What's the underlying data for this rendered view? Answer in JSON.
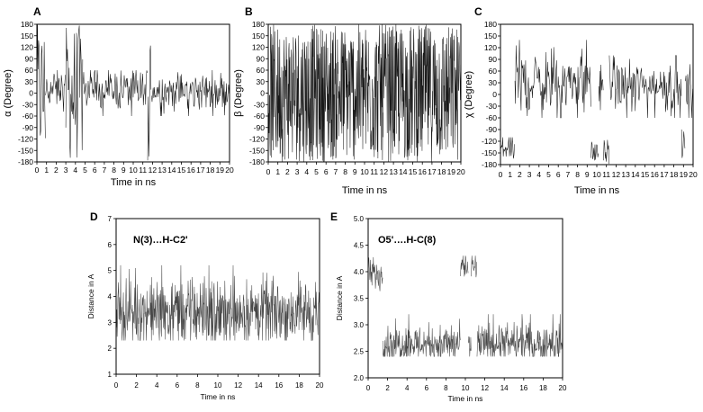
{
  "chart_data": [
    {
      "panel": "A",
      "type": "line",
      "title": "",
      "xlabel": "Time in ns",
      "ylabel": "α (Degree)",
      "xlim": [
        0,
        20
      ],
      "ylim": [
        -180,
        180
      ],
      "xticks": [
        0,
        1,
        2,
        3,
        4,
        5,
        6,
        7,
        8,
        9,
        10,
        11,
        12,
        13,
        14,
        15,
        16,
        17,
        18,
        19,
        20
      ],
      "yticks": [
        180,
        150,
        120,
        90,
        60,
        30,
        0,
        -30,
        -60,
        -90,
        -120,
        -150,
        -180
      ],
      "series": [
        {
          "color": "#000000",
          "segments": [
            {
              "x": [
                0.0,
                0.9
              ],
              "y_min": -180,
              "y_max": 180,
              "y_center": 0
            },
            {
              "x": [
                0.9,
                3.0
              ],
              "y_min": -60,
              "y_max": 60,
              "y_center": 10
            },
            {
              "x": [
                3.0,
                4.8
              ],
              "y_min": -180,
              "y_max": 180,
              "y_center": 0
            },
            {
              "x": [
                4.8,
                11.5
              ],
              "y_min": -60,
              "y_max": 60,
              "y_center": 10
            },
            {
              "x": [
                11.5,
                11.9
              ],
              "y_min": -180,
              "y_max": 180,
              "y_center": 0
            },
            {
              "x": [
                11.9,
                20.0
              ],
              "y_min": -60,
              "y_max": 60,
              "y_center": 5
            }
          ]
        }
      ]
    },
    {
      "panel": "B",
      "type": "line",
      "title": "",
      "xlabel": "Time in ns",
      "ylabel": "β (Degree)",
      "xlim": [
        0,
        20
      ],
      "ylim": [
        -180,
        180
      ],
      "xticks": [
        0,
        1,
        2,
        3,
        4,
        5,
        6,
        7,
        8,
        9,
        10,
        11,
        12,
        13,
        14,
        15,
        16,
        17,
        18,
        19,
        20
      ],
      "yticks": [
        180,
        150,
        120,
        90,
        60,
        30,
        0,
        -30,
        -60,
        -90,
        -120,
        -150,
        -180
      ],
      "series": [
        {
          "color": "#000000",
          "segments": [
            {
              "x": [
                0.0,
                20.0
              ],
              "y_min": -180,
              "y_max": 180,
              "y_center": 0
            }
          ]
        }
      ]
    },
    {
      "panel": "C",
      "type": "line",
      "title": "",
      "xlabel": "Time in ns",
      "ylabel": "χ (Degree)",
      "xlim": [
        0,
        20
      ],
      "ylim": [
        -180,
        180
      ],
      "xticks": [
        0,
        1,
        2,
        3,
        4,
        5,
        6,
        7,
        8,
        9,
        10,
        11,
        12,
        13,
        14,
        15,
        16,
        17,
        18,
        19,
        20
      ],
      "yticks": [
        180,
        150,
        120,
        90,
        60,
        30,
        0,
        -30,
        -60,
        -90,
        -120,
        -150,
        -180
      ],
      "series": [
        {
          "color": "#000000",
          "segments": [
            {
              "x": [
                0.0,
                1.5
              ],
              "y_min": -180,
              "y_max": -110,
              "y_center": -140
            },
            {
              "x": [
                1.5,
                9.4
              ],
              "y_min": -60,
              "y_max": 140,
              "y_center": 30
            },
            {
              "x": [
                9.4,
                10.2
              ],
              "y_min": -180,
              "y_max": -110,
              "y_center": -150
            },
            {
              "x": [
                10.2,
                10.7
              ],
              "y_min": -60,
              "y_max": 120,
              "y_center": 30
            },
            {
              "x": [
                10.7,
                11.3
              ],
              "y_min": -180,
              "y_max": -110,
              "y_center": -150
            },
            {
              "x": [
                11.3,
                18.8
              ],
              "y_min": -60,
              "y_max": 100,
              "y_center": 20
            },
            {
              "x": [
                18.8,
                19.2
              ],
              "y_min": -180,
              "y_max": -90,
              "y_center": -130
            },
            {
              "x": [
                19.2,
                20.0
              ],
              "y_min": -60,
              "y_max": 100,
              "y_center": 10
            }
          ]
        }
      ]
    },
    {
      "panel": "D",
      "type": "line",
      "title": "N(3)…H-C2'",
      "xlabel": "Time in ns",
      "ylabel": "Distance in A",
      "xlim": [
        0,
        20
      ],
      "ylim": [
        1,
        7
      ],
      "xticks": [
        0,
        2,
        4,
        6,
        8,
        10,
        12,
        14,
        16,
        18,
        20
      ],
      "yticks": [
        7,
        6,
        5,
        4,
        3,
        2,
        1
      ],
      "series": [
        {
          "color": "#333333",
          "segments": [
            {
              "x": [
                0.0,
                20.0
              ],
              "y_min": 2.3,
              "y_max": 5.2,
              "y_center": 3.4
            }
          ]
        }
      ]
    },
    {
      "panel": "E",
      "type": "line",
      "title": "O5'….H-C(8)",
      "xlabel": "Time in ns",
      "ylabel": "Distance in A",
      "xlim": [
        0,
        20
      ],
      "ylim": [
        2.0,
        5.0
      ],
      "xticks": [
        0,
        2,
        4,
        6,
        8,
        10,
        12,
        14,
        16,
        18,
        20
      ],
      "yticks": [
        5.0,
        4.5,
        4.0,
        3.5,
        3.0,
        2.5,
        2.0
      ],
      "series": [
        {
          "color": "#333333",
          "segments": [
            {
              "x": [
                0.0,
                1.5
              ],
              "y_min": 3.6,
              "y_max": 4.3,
              "y_center": 3.95
            },
            {
              "x": [
                1.5,
                9.5
              ],
              "y_min": 2.4,
              "y_max": 3.2,
              "y_center": 2.65
            },
            {
              "x": [
                9.5,
                10.3
              ],
              "y_min": 3.7,
              "y_max": 4.3,
              "y_center": 4.05
            },
            {
              "x": [
                10.3,
                10.6
              ],
              "y_min": 2.4,
              "y_max": 3.0,
              "y_center": 2.6
            },
            {
              "x": [
                10.6,
                11.2
              ],
              "y_min": 3.7,
              "y_max": 4.3,
              "y_center": 4.05
            },
            {
              "x": [
                11.2,
                20.0
              ],
              "y_min": 2.4,
              "y_max": 3.2,
              "y_center": 2.65
            }
          ]
        }
      ]
    }
  ]
}
